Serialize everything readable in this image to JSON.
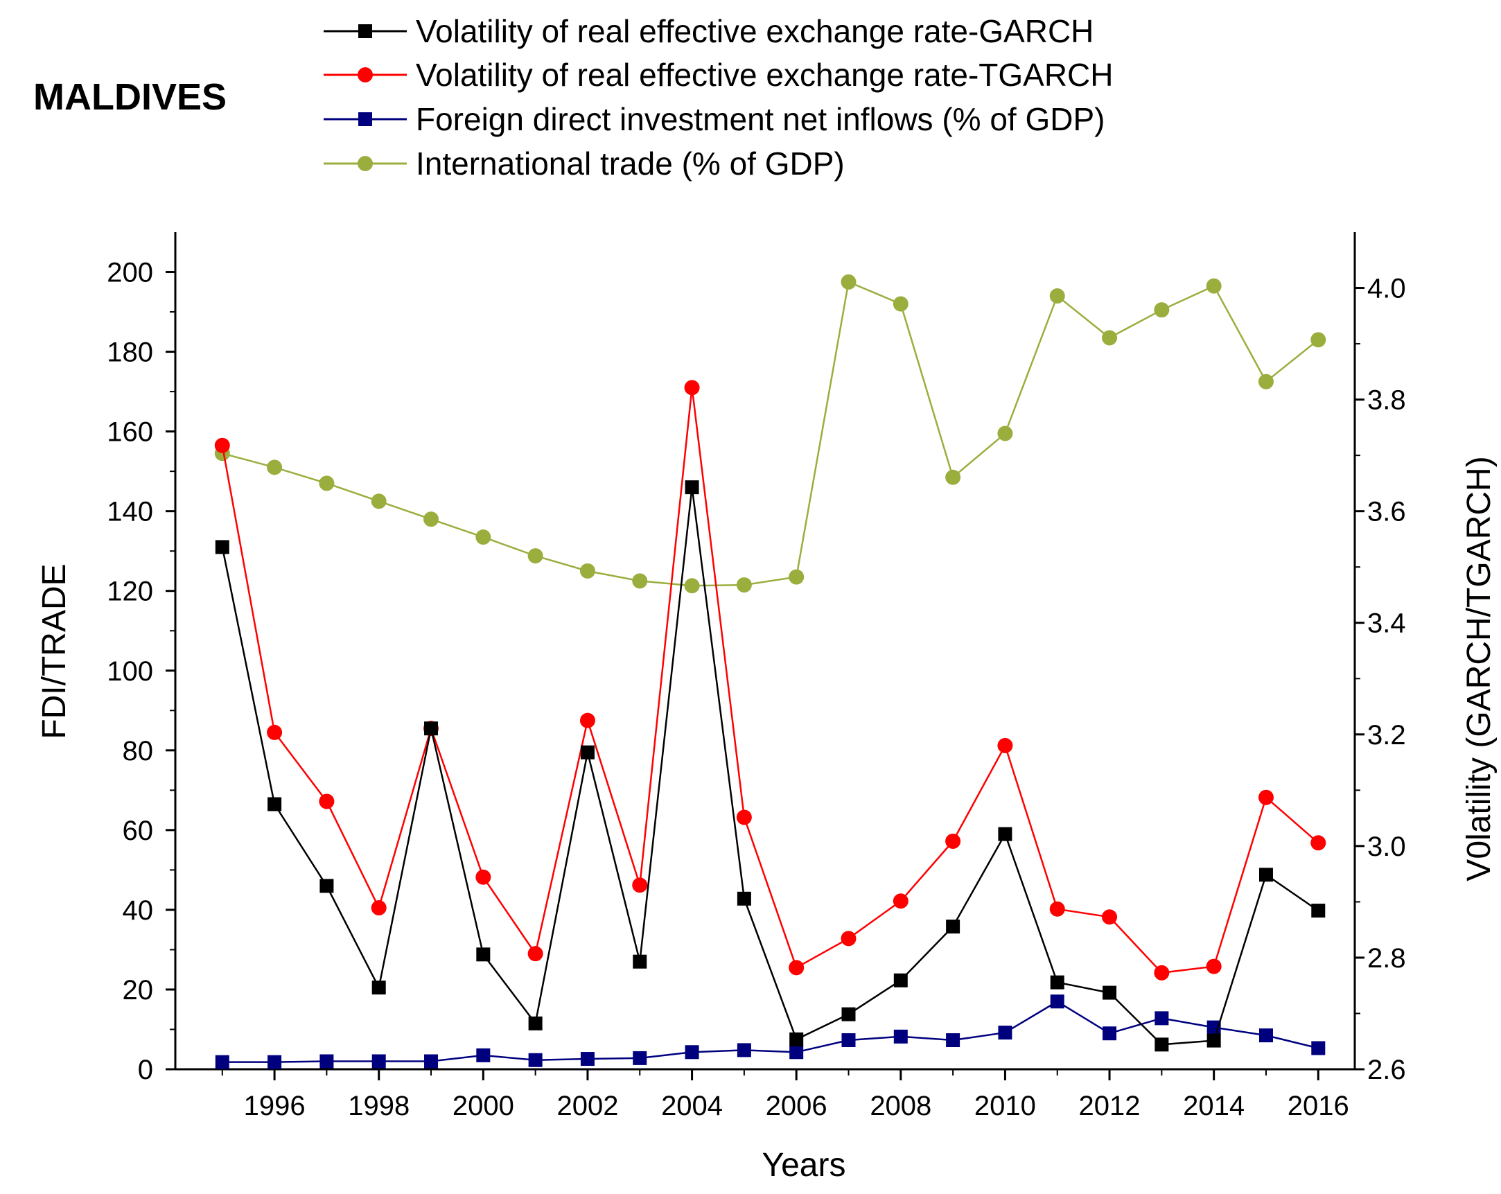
{
  "chart_data": {
    "type": "line",
    "title": "MALDIVES",
    "xlabel": "Years",
    "ylabel_left": "FDI/TRADE",
    "ylabel_right": "V0latility (GARCH/TGARCH)",
    "x": [
      1995,
      1996,
      1997,
      1998,
      1999,
      2000,
      2001,
      2002,
      2003,
      2004,
      2005,
      2006,
      2007,
      2008,
      2009,
      2010,
      2011,
      2012,
      2013,
      2014,
      2015,
      2016
    ],
    "xticks": [
      1996,
      1998,
      2000,
      2002,
      2004,
      2006,
      2008,
      2010,
      2012,
      2014,
      2016
    ],
    "xticklabels": [
      "1996",
      "1998",
      "2000",
      "2002",
      "2004",
      "2006",
      "2008",
      "2010",
      "2012",
      "2014",
      "2016"
    ],
    "xlim": [
      1994.1,
      2016.7
    ],
    "ylim_left": [
      0,
      210
    ],
    "yticks_left": [
      0,
      20,
      40,
      60,
      80,
      100,
      120,
      140,
      160,
      180,
      200
    ],
    "yticklabels_left": [
      "0",
      "20",
      "40",
      "60",
      "80",
      "100",
      "120",
      "140",
      "160",
      "180",
      "200"
    ],
    "ylim_right": [
      2.6,
      4.1
    ],
    "yticks_right": [
      2.6,
      2.8,
      3.0,
      3.2,
      3.4,
      3.6,
      3.8,
      4.0
    ],
    "yticklabels_right": [
      "2.6",
      "2.8",
      "3.0",
      "3.2",
      "3.4",
      "3.6",
      "3.8",
      "4.0"
    ],
    "grid": false,
    "legend_position": "top",
    "series": [
      {
        "name": "Volatility of real effective exchange rate-GARCH",
        "axis": "left",
        "color": "#000000",
        "marker": "square",
        "values": [
          131,
          66.5,
          46,
          20.5,
          85.5,
          28.8,
          11.5,
          79.5,
          27,
          146,
          42.8,
          7.5,
          13.8,
          22.3,
          35.8,
          59,
          21.8,
          19.2,
          6.2,
          7.2,
          48.8,
          39.8
        ]
      },
      {
        "name": "Volatility of real effective exchange rate-TGARCH",
        "axis": "left",
        "color": "#ff0000",
        "marker": "circle",
        "values": [
          156.5,
          84.5,
          67.2,
          40.5,
          85.5,
          48.2,
          29,
          87.5,
          46.2,
          171,
          63.2,
          25.5,
          32.8,
          42.2,
          57.2,
          81.2,
          40.2,
          38.2,
          24.2,
          25.8,
          68.2,
          56.8
        ]
      },
      {
        "name": "Foreign direct investment net inflows (% of GDP)",
        "axis": "left",
        "color": "#00007f",
        "marker": "square",
        "values": [
          1.8,
          1.8,
          2.0,
          2.0,
          2.0,
          3.5,
          2.3,
          2.6,
          2.8,
          4.3,
          4.8,
          4.3,
          7.3,
          8.2,
          7.3,
          9.2,
          17.0,
          9.0,
          12.8,
          10.5,
          8.5,
          5.3
        ]
      },
      {
        "name": "International trade (% of GDP)",
        "axis": "left",
        "color": "#9aae3d",
        "marker": "circle",
        "values": [
          154.5,
          151,
          147,
          142.5,
          138,
          133.5,
          128.8,
          125,
          122.5,
          121.3,
          121.5,
          123.5,
          197.5,
          192,
          148.5,
          159.5,
          194,
          183.5,
          190.5,
          196.5,
          172.5,
          183
        ]
      }
    ]
  }
}
